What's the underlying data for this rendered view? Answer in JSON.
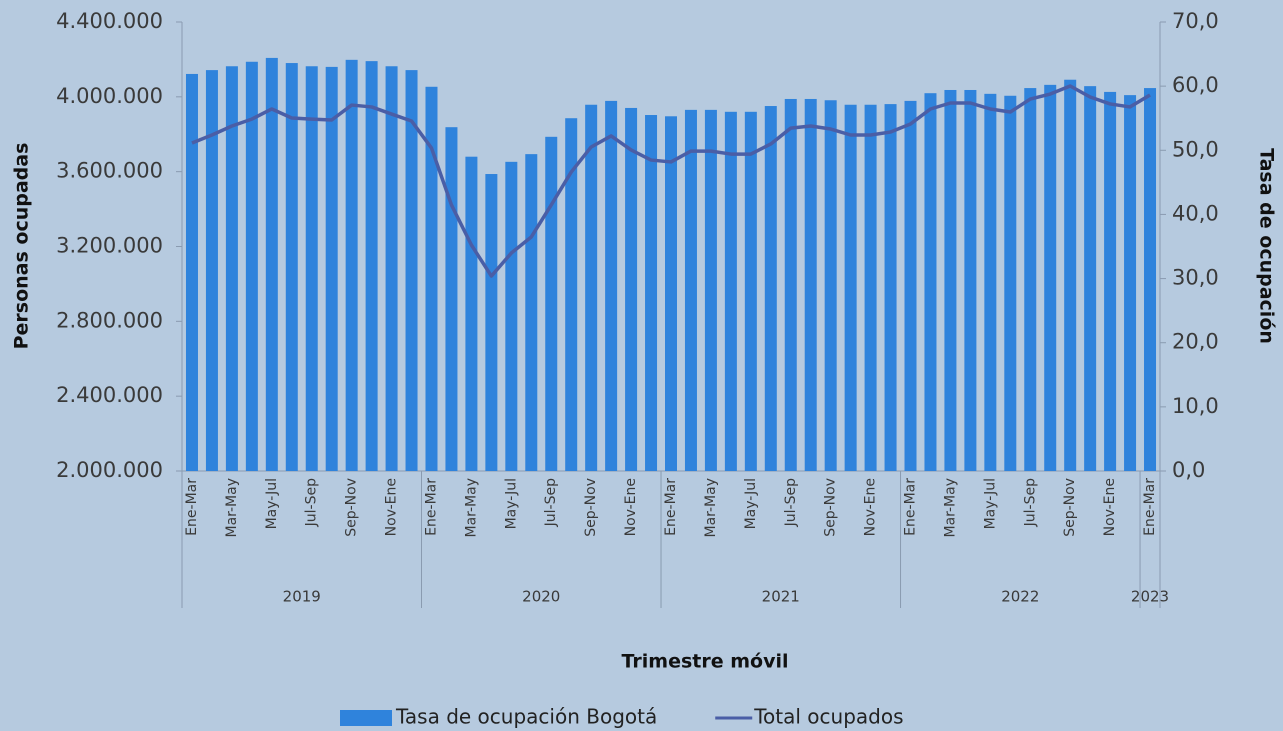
{
  "chart_data": {
    "type": "combo",
    "x_label": "Trimestre móvil",
    "y_label": "Personas ocupadas",
    "y2_label": "Tasa de ocupación",
    "categories": [
      "Ene-Mar",
      null,
      "Mar-May",
      null,
      "May-Jul",
      null,
      "Jul-Sep",
      null,
      "Sep-Nov",
      null,
      "Nov-Ene",
      null,
      "Ene-Mar",
      null,
      "Mar-May",
      null,
      "May-Jul",
      null,
      "Jul-Sep",
      null,
      "Sep-Nov",
      null,
      "Nov-Ene",
      null,
      "Ene-Mar",
      null,
      "Mar-May",
      null,
      "May-Jul",
      null,
      "Jul-Sep",
      null,
      "Sep-Nov",
      null,
      "Nov-Ene",
      null,
      "Ene-Mar",
      null,
      "Mar-May",
      null,
      "May-Jul",
      null,
      "Jul-Sep",
      null,
      "Sep-Nov",
      null,
      "Nov-Ene",
      null,
      "Ene-Mar"
    ],
    "year_labels": [
      "2019",
      null,
      null,
      null,
      null,
      null,
      null,
      null,
      null,
      null,
      null,
      null,
      "2020",
      null,
      null,
      null,
      null,
      null,
      null,
      null,
      null,
      null,
      null,
      null,
      "2021",
      null,
      null,
      null,
      null,
      null,
      null,
      null,
      null,
      null,
      null,
      null,
      "2022",
      null,
      null,
      null,
      null,
      null,
      null,
      null,
      null,
      null,
      null,
      null,
      "2023"
    ],
    "series": [
      {
        "name": "Tasa de ocupación Bogotá",
        "type": "bar",
        "axis": "y2",
        "color": "#2f83dc",
        "values": [
          61.9,
          62.5,
          63.1,
          63.8,
          64.4,
          63.6,
          63.1,
          63.0,
          64.1,
          63.9,
          63.1,
          62.5,
          59.9,
          53.6,
          49.0,
          46.3,
          48.2,
          49.4,
          52.1,
          55.0,
          57.1,
          57.7,
          56.6,
          55.5,
          55.3,
          56.3,
          56.3,
          56.0,
          56.0,
          56.9,
          58.0,
          58.0,
          57.8,
          57.1,
          57.1,
          57.2,
          57.7,
          58.9,
          59.4,
          59.4,
          58.8,
          58.5,
          59.7,
          60.2,
          61.0,
          60.0,
          59.1,
          58.6,
          59.7
        ]
      },
      {
        "name": "Total ocupados",
        "type": "line",
        "axis": "y",
        "color": "#4a5ea6",
        "values": [
          3753000,
          3796000,
          3844000,
          3881000,
          3935000,
          3887000,
          3881000,
          3876000,
          3956000,
          3946000,
          3908000,
          3871000,
          3726000,
          3422000,
          3208000,
          3042000,
          3165000,
          3251000,
          3422000,
          3598000,
          3732000,
          3791000,
          3716000,
          3662000,
          3652000,
          3710000,
          3710000,
          3694000,
          3694000,
          3748000,
          3833000,
          3844000,
          3828000,
          3796000,
          3796000,
          3812000,
          3855000,
          3935000,
          3967000,
          3967000,
          3935000,
          3919000,
          3988000,
          4015000,
          4058000,
          3999000,
          3962000,
          3946000,
          4010000
        ]
      }
    ],
    "ylim": [
      2000000,
      4400000
    ],
    "yticks": [
      {
        "value": 2000000,
        "label": "2.000.000"
      },
      {
        "value": 2400000,
        "label": "2.400.000"
      },
      {
        "value": 2800000,
        "label": "2.800.000"
      },
      {
        "value": 3200000,
        "label": "3.200.000"
      },
      {
        "value": 3600000,
        "label": "3.600.000"
      },
      {
        "value": 4000000,
        "label": "4.000.000"
      },
      {
        "value": 4400000,
        "label": "4.400.000"
      }
    ],
    "y2lim": [
      0,
      70
    ],
    "y2ticks": [
      {
        "value": 0,
        "label": "0,0"
      },
      {
        "value": 10,
        "label": "10,0"
      },
      {
        "value": 20,
        "label": "20,0"
      },
      {
        "value": 30,
        "label": "30,0"
      },
      {
        "value": 40,
        "label": "40,0"
      },
      {
        "value": 50,
        "label": "50,0"
      },
      {
        "value": 60,
        "label": "60,0"
      },
      {
        "value": 70,
        "label": "70,0"
      }
    ],
    "grid": false,
    "legend": "bottom"
  }
}
